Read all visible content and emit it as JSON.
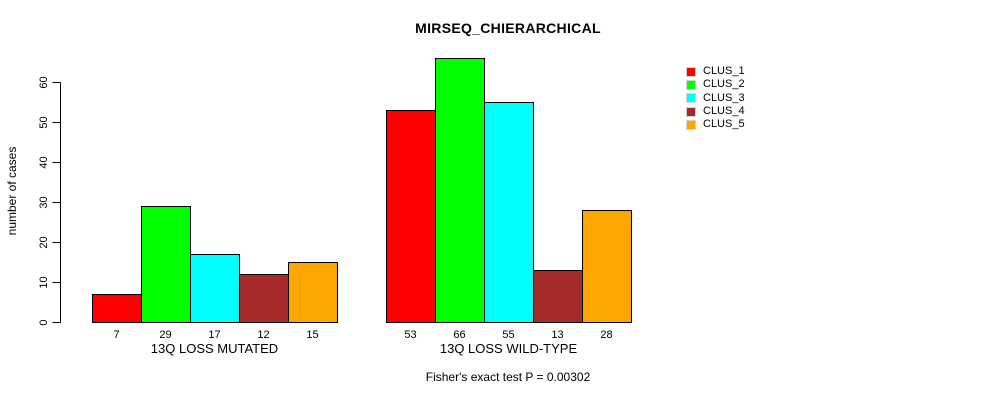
{
  "chart_data": {
    "type": "bar",
    "title": "MIRSEQ_CHIERARCHICAL",
    "ylabel": "number of cases",
    "xlabel": "",
    "annotation": "Fisher's exact test P = 0.00302",
    "groups": [
      "13Q LOSS MUTATED",
      "13Q LOSS WILD-TYPE"
    ],
    "series": [
      {
        "name": "CLUS_1",
        "color": "#FF0000",
        "values": [
          7,
          53
        ]
      },
      {
        "name": "CLUS_2",
        "color": "#00FF00",
        "values": [
          29,
          66
        ]
      },
      {
        "name": "CLUS_3",
        "color": "#00FFFF",
        "values": [
          17,
          55
        ]
      },
      {
        "name": "CLUS_4",
        "color": "#A52A2A",
        "values": [
          12,
          13
        ]
      },
      {
        "name": "CLUS_5",
        "color": "#FFA500",
        "values": [
          15,
          28
        ]
      }
    ],
    "yticks": [
      0,
      10,
      20,
      30,
      40,
      50,
      60
    ],
    "ylim": [
      0,
      66
    ],
    "grid": false,
    "legend_position": "right",
    "bar_value_labels_shown": true,
    "bar_border_color": "#000000",
    "axis_color": "#000000",
    "background_color": "#FFFFFF"
  }
}
